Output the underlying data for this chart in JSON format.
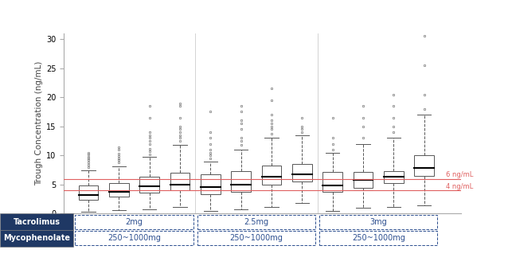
{
  "ylabel": "Trough Concentration (ng/mL)",
  "ylim": [
    0,
    31
  ],
  "yticks": [
    0,
    5,
    10,
    15,
    20,
    25,
    30
  ],
  "hline_6": 6,
  "hline_4": 4,
  "hline_color": "#e06060",
  "hline_label_6": "6 ng/mL",
  "hline_label_4": "4 ng/mL",
  "box_data": [
    {
      "median": 3.2,
      "q1": 2.4,
      "q3": 4.8,
      "whislo": 0.3,
      "whishi": 7.5,
      "fliers_hi": [
        8.0,
        8.4,
        8.8,
        9.2,
        9.5,
        9.8,
        10.2,
        10.5
      ]
    },
    {
      "median": 3.7,
      "q1": 2.9,
      "q3": 5.2,
      "whislo": 0.6,
      "whishi": 8.2,
      "fliers_hi": [
        8.8,
        9.2,
        9.5,
        9.9,
        10.3,
        11.0,
        11.4
      ]
    },
    {
      "median": 4.7,
      "q1": 3.6,
      "q3": 6.3,
      "whislo": 0.8,
      "whishi": 9.8,
      "fliers_hi": [
        10.2,
        10.8,
        11.2,
        12.0,
        12.5,
        13.0,
        13.5,
        14.0,
        16.5,
        18.5
      ]
    },
    {
      "median": 5.0,
      "q1": 4.0,
      "q3": 7.0,
      "whislo": 1.2,
      "whishi": 11.8,
      "fliers_hi": [
        12.5,
        13.0,
        13.5,
        14.0,
        14.5,
        15.0,
        16.5,
        18.5,
        19.0
      ]
    },
    {
      "median": 4.6,
      "q1": 3.3,
      "q3": 6.8,
      "whislo": 0.5,
      "whishi": 9.0,
      "fliers_hi": [
        9.5,
        10.0,
        10.5,
        11.0,
        12.0,
        13.0,
        14.0,
        17.5
      ]
    },
    {
      "median": 5.0,
      "q1": 3.8,
      "q3": 7.3,
      "whislo": 0.8,
      "whishi": 11.0,
      "fliers_hi": [
        11.8,
        12.5,
        13.0,
        14.5,
        15.5,
        16.0,
        17.5,
        18.5
      ]
    },
    {
      "median": 6.3,
      "q1": 5.0,
      "q3": 8.3,
      "whislo": 1.2,
      "whishi": 13.0,
      "fliers_hi": [
        13.8,
        14.5,
        15.0,
        15.5,
        16.0,
        17.0,
        19.5,
        21.5
      ]
    },
    {
      "median": 6.8,
      "q1": 5.5,
      "q3": 8.5,
      "whislo": 1.8,
      "whishi": 13.5,
      "fliers_hi": [
        14.0,
        14.5,
        15.0,
        16.5
      ]
    },
    {
      "median": 4.8,
      "q1": 3.8,
      "q3": 7.2,
      "whislo": 0.5,
      "whishi": 10.5,
      "fliers_hi": [
        11.0,
        12.0,
        13.0,
        16.5
      ]
    },
    {
      "median": 5.8,
      "q1": 4.5,
      "q3": 7.2,
      "whislo": 1.0,
      "whishi": 12.0,
      "fliers_hi": [
        13.0,
        15.0,
        16.5,
        18.5
      ]
    },
    {
      "median": 6.3,
      "q1": 5.2,
      "q3": 7.3,
      "whislo": 1.2,
      "whishi": 13.0,
      "fliers_hi": [
        14.0,
        15.0,
        16.5,
        18.5,
        20.5
      ]
    },
    {
      "median": 7.8,
      "q1": 6.5,
      "q3": 10.0,
      "whislo": 1.5,
      "whishi": 17.0,
      "fliers_hi": [
        18.0,
        20.5,
        25.5,
        30.5
      ]
    }
  ],
  "box_width": 0.65,
  "header_bg_color": "#1f3864",
  "header_text_color": "white",
  "dashed_border_color": "#2e5090",
  "tacrolimus_header": "Tacrolimus",
  "mycophenolate_header": "Mycophenolate",
  "background_color": "white",
  "font_size_label": 7.5,
  "font_size_tick": 7,
  "font_size_table": 7,
  "groups_tacrolimus": [
    "2mg",
    "2.5mg",
    "3mg"
  ],
  "groups_mycophenolate": [
    "250~1000mg",
    "250~1000mg",
    "250~1000mg"
  ]
}
